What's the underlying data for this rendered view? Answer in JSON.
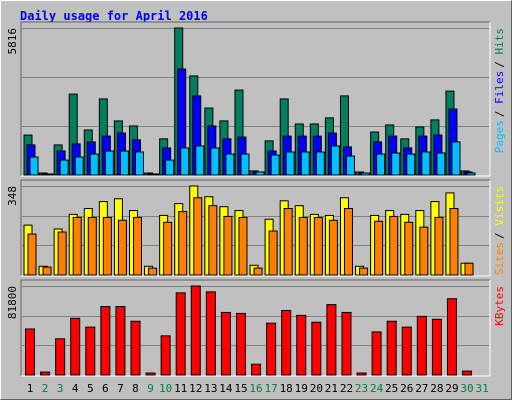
{
  "title": "Daily usage for April 2016",
  "chart_data": [
    {
      "type": "bar",
      "grid": true,
      "ylim": [
        0,
        5816
      ],
      "legend_separator": "/",
      "series": [
        {
          "name": "Hits",
          "color": "#008060",
          "values": [
            1580,
            80,
            1190,
            3200,
            1780,
            3010,
            2140,
            1940,
            80,
            1430,
            5816,
            3920,
            2650,
            2140,
            3360,
            160,
            1350,
            3010,
            2020,
            2020,
            2260,
            3130,
            120,
            1700,
            1980,
            1430,
            1900,
            2180,
            3320,
            160,
            0
          ]
        },
        {
          "name": "Files",
          "color": "#0000ff",
          "values": [
            1190,
            40,
            950,
            1230,
            1310,
            1540,
            1660,
            1390,
            40,
            1070,
            4190,
            3130,
            1940,
            1430,
            1500,
            120,
            950,
            1540,
            1540,
            1540,
            1660,
            1110,
            80,
            1310,
            1540,
            1070,
            1540,
            1580,
            2610,
            120,
            0
          ]
        },
        {
          "name": "Pages",
          "color": "#00c0ff",
          "values": [
            710,
            40,
            590,
            710,
            830,
            950,
            950,
            910,
            40,
            590,
            1070,
            1150,
            1070,
            830,
            830,
            120,
            790,
            910,
            910,
            910,
            1150,
            750,
            80,
            830,
            870,
            830,
            910,
            870,
            1310,
            80,
            0
          ]
        }
      ]
    },
    {
      "type": "bar",
      "grid": true,
      "ylim": [
        0,
        348
      ],
      "legend_separator": "/",
      "series": [
        {
          "name": "Visits",
          "color": "#ffff00",
          "values": [
            195,
            34,
            180,
            237,
            260,
            287,
            298,
            252,
            34,
            233,
            279,
            348,
            306,
            267,
            252,
            38,
            218,
            290,
            271,
            237,
            233,
            302,
            34,
            233,
            252,
            237,
            252,
            287,
            321,
            46,
            0
          ]
        },
        {
          "name": "Sites",
          "color": "#ff8000",
          "values": [
            160,
            31,
            168,
            225,
            225,
            225,
            214,
            225,
            27,
            206,
            248,
            302,
            271,
            229,
            225,
            27,
            172,
            260,
            225,
            225,
            214,
            260,
            27,
            210,
            229,
            206,
            187,
            225,
            260,
            46,
            0
          ]
        }
      ]
    },
    {
      "type": "bar",
      "grid": true,
      "ylim": [
        0,
        81800
      ],
      "series": [
        {
          "name": "KBytes",
          "color": "#ff0000",
          "values": [
            42300,
            2700,
            33300,
            52100,
            44000,
            62900,
            62900,
            49400,
            1800,
            36000,
            75500,
            81800,
            76400,
            57500,
            56600,
            9900,
            47600,
            59300,
            54800,
            48500,
            64700,
            57500,
            1800,
            39600,
            49400,
            44000,
            53900,
            51200,
            70100,
            3600,
            0
          ]
        }
      ],
      "categories": [
        "1",
        "2",
        "3",
        "4",
        "5",
        "6",
        "7",
        "8",
        "9",
        "10",
        "11",
        "12",
        "13",
        "14",
        "15",
        "16",
        "17",
        "18",
        "19",
        "20",
        "21",
        "22",
        "23",
        "24",
        "25",
        "26",
        "27",
        "28",
        "29",
        "30",
        "31"
      ],
      "category_colors": [
        "#000000",
        "#008040",
        "#008040",
        "#000000",
        "#000000",
        "#000000",
        "#000000",
        "#000000",
        "#008040",
        "#008040",
        "#000000",
        "#000000",
        "#000000",
        "#000000",
        "#000000",
        "#008040",
        "#008040",
        "#000000",
        "#000000",
        "#000000",
        "#000000",
        "#000000",
        "#008040",
        "#008040",
        "#000000",
        "#000000",
        "#000000",
        "#000000",
        "#000000",
        "#008040",
        "#008040"
      ]
    }
  ]
}
